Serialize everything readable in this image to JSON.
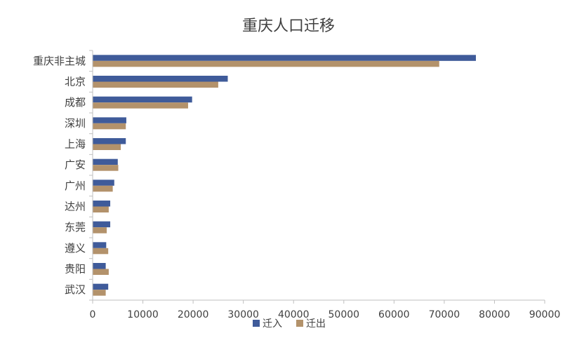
{
  "chart_data": {
    "type": "bar",
    "orientation": "horizontal",
    "title": "重庆人口迁移",
    "xlabel": "",
    "ylabel": "",
    "xlim": [
      0,
      90000
    ],
    "x_ticks": [
      "0",
      "10000",
      "20000",
      "30000",
      "40000",
      "50000",
      "60000",
      "70000",
      "80000",
      "90000"
    ],
    "grid": false,
    "legend_position": "bottom",
    "categories": [
      "重庆非主城",
      "北京",
      "成都",
      "深圳",
      "上海",
      "广安",
      "广州",
      "达州",
      "东莞",
      "遵义",
      "贵阳",
      "武汉"
    ],
    "series": [
      {
        "name": "迁入",
        "color": "#3f5b9a",
        "values": [
          76300,
          26900,
          19800,
          6700,
          6600,
          5000,
          4300,
          3500,
          3500,
          2700,
          2600,
          3100
        ]
      },
      {
        "name": "迁出",
        "color": "#b3926b",
        "values": [
          69000,
          25000,
          19000,
          6600,
          5600,
          5100,
          4000,
          3200,
          2800,
          3100,
          3200,
          2600
        ]
      }
    ]
  }
}
